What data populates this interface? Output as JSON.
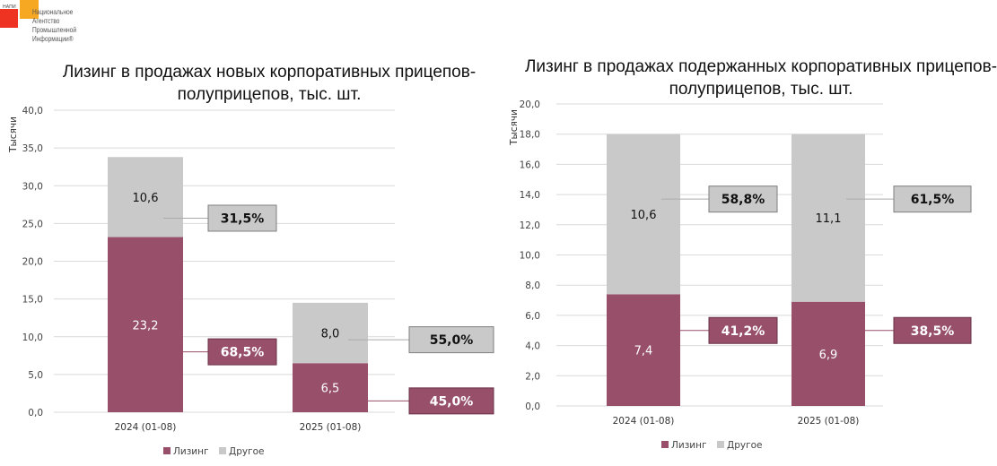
{
  "logo": {
    "small_label": "НАПИ",
    "lines": [
      "Национальное",
      "Агентство",
      "Промышленной",
      "Информации®"
    ]
  },
  "colors": {
    "leasing": "#974f6a",
    "other": "#c9c9c9",
    "grid": "#d9d9d9"
  },
  "chart_data": [
    {
      "type": "bar",
      "stacked": true,
      "title": "Лизинг в продажах новых корпоративных прицепов-полуприцепов, тыс. шт.",
      "title_lines": [
        "Лизинг в продажах новых корпоративных прицепов-",
        "полуприцепов, тыс. шт."
      ],
      "xlabel": "",
      "ylabel": "Тысячи",
      "ylim": [
        0,
        40
      ],
      "yticks": [
        0,
        5,
        10,
        15,
        20,
        25,
        30,
        35,
        40
      ],
      "ytick_labels": [
        "0,0",
        "5,0",
        "10,0",
        "15,0",
        "20,0",
        "25,0",
        "30,0",
        "35,0",
        "40,0"
      ],
      "grid": true,
      "legend_position": "bottom",
      "categories": [
        "2024 (01-08)",
        "2025 (01-08)"
      ],
      "series": [
        {
          "name": "Лизинг",
          "values": [
            23.2,
            6.5
          ],
          "labels": [
            "23,2",
            "6,5"
          ],
          "share_labels": [
            "68,5%",
            "45,0%"
          ]
        },
        {
          "name": "Другое",
          "values": [
            10.6,
            8.0
          ],
          "labels": [
            "10,6",
            "8,0"
          ],
          "share_labels": [
            "31,5%",
            "55,0%"
          ]
        }
      ]
    },
    {
      "type": "bar",
      "stacked": true,
      "title": "Лизинг в продажах подержанных корпоративных прицепов-полуприцепов, тыс. шт.",
      "title_lines": [
        "Лизинг в продажах подержанных корпоративных прицепов-",
        "полуприцепов, тыс. шт."
      ],
      "xlabel": "",
      "ylabel": "Тысячи",
      "ylim": [
        0,
        20
      ],
      "yticks": [
        0,
        2,
        4,
        6,
        8,
        10,
        12,
        14,
        16,
        18,
        20
      ],
      "ytick_labels": [
        "0,0",
        "2,0",
        "4,0",
        "6,0",
        "8,0",
        "10,0",
        "12,0",
        "14,0",
        "16,0",
        "18,0",
        "20,0"
      ],
      "grid": true,
      "legend_position": "bottom",
      "categories": [
        "2024 (01-08)",
        "2025 (01-08)"
      ],
      "series": [
        {
          "name": "Лизинг",
          "values": [
            7.4,
            6.9
          ],
          "labels": [
            "7,4",
            "6,9"
          ],
          "share_labels": [
            "41,2%",
            "38,5%"
          ]
        },
        {
          "name": "Другое",
          "values": [
            10.6,
            11.1
          ],
          "labels": [
            "10,6",
            "11,1"
          ],
          "share_labels": [
            "58,8%",
            "61,5%"
          ]
        }
      ]
    }
  ]
}
